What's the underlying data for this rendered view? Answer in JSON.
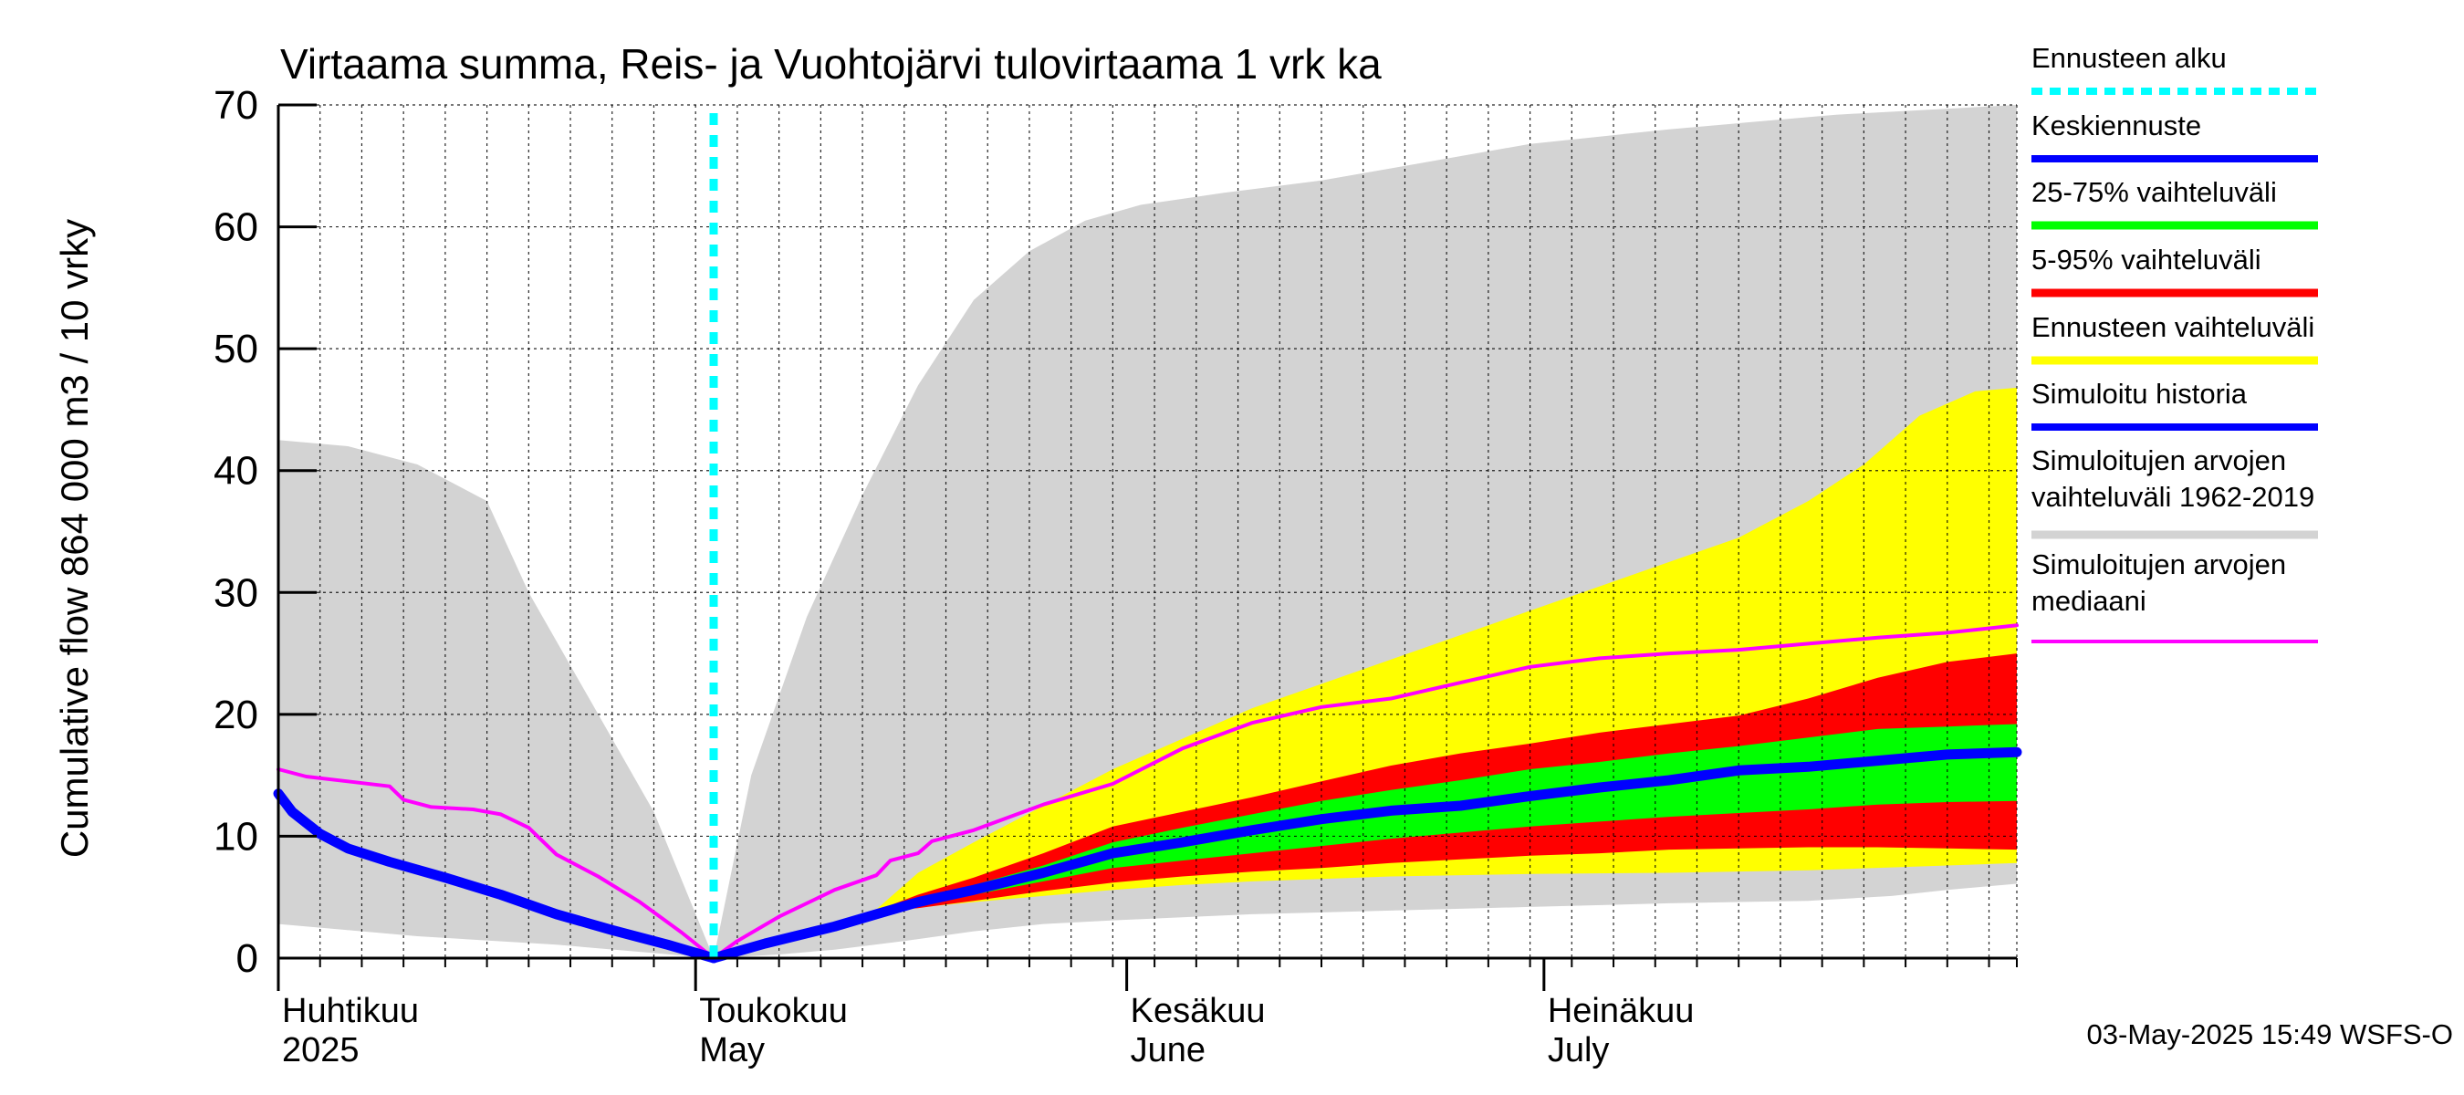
{
  "chart_data": {
    "type": "area",
    "title": "Virtaama summa, Reis- ja Vuohtojärvi tulovirtaama 1 vrk ka",
    "ylabel": "Cumulative flow    864 000 m3 / 10 vrky",
    "ylim": [
      0,
      70
    ],
    "yticks": [
      0,
      10,
      20,
      30,
      40,
      50,
      60,
      70
    ],
    "xlim": [
      0,
      125
    ],
    "grid": true,
    "day_ticks": [
      0,
      3,
      6,
      9,
      12,
      15,
      18,
      21,
      24,
      27,
      30,
      33,
      36,
      39,
      42,
      45,
      48,
      51,
      54,
      57,
      60,
      63,
      66,
      69,
      72,
      75,
      78,
      81,
      84,
      87,
      90,
      93,
      96,
      99,
      102,
      105,
      108,
      111,
      114,
      117,
      120,
      123,
      125
    ],
    "month_ticks": [
      {
        "day": 0,
        "line1": "Huhtikuu",
        "line2": "2025"
      },
      {
        "day": 30,
        "line1": "Toukokuu",
        "line2": "May"
      },
      {
        "day": 61,
        "line1": "Kesäkuu",
        "line2": "June"
      },
      {
        "day": 91,
        "line1": "Heinäkuu",
        "line2": "July"
      }
    ],
    "forecast_start_day": 31.3,
    "bands": {
      "sim_range_1962_2019": {
        "upper": [
          [
            0,
            42.5
          ],
          [
            5,
            42
          ],
          [
            10,
            40.5
          ],
          [
            15,
            37.5
          ],
          [
            18,
            30
          ],
          [
            22,
            22
          ],
          [
            27,
            12
          ],
          [
            31.3,
            0
          ],
          [
            34,
            15
          ],
          [
            38,
            28
          ],
          [
            42,
            38
          ],
          [
            46,
            47
          ],
          [
            50,
            54
          ],
          [
            54,
            58
          ],
          [
            58,
            60.5
          ],
          [
            62,
            61.8
          ],
          [
            68,
            62.8
          ],
          [
            75,
            63.8
          ],
          [
            80,
            64.8
          ],
          [
            90,
            66.8
          ],
          [
            100,
            68
          ],
          [
            112,
            69.2
          ],
          [
            125,
            70
          ]
        ],
        "lower": [
          [
            0,
            2.8
          ],
          [
            10,
            1.8
          ],
          [
            20,
            1.1
          ],
          [
            31.3,
            0
          ],
          [
            36,
            0.3
          ],
          [
            40,
            0.7
          ],
          [
            45,
            1.4
          ],
          [
            50,
            2.2
          ],
          [
            55,
            2.8
          ],
          [
            60,
            3.1
          ],
          [
            70,
            3.6
          ],
          [
            80,
            3.9
          ],
          [
            90,
            4.2
          ],
          [
            100,
            4.5
          ],
          [
            110,
            4.7
          ],
          [
            116,
            5.1
          ],
          [
            120,
            5.6
          ],
          [
            125,
            6.1
          ]
        ]
      },
      "forecast_range": {
        "upper": [
          [
            43,
            4
          ],
          [
            46,
            7
          ],
          [
            50,
            9.5
          ],
          [
            55,
            12.5
          ],
          [
            60,
            15.5
          ],
          [
            65,
            18
          ],
          [
            70,
            20.5
          ],
          [
            75,
            22.5
          ],
          [
            80,
            24.5
          ],
          [
            85,
            26.5
          ],
          [
            90,
            28.5
          ],
          [
            95,
            30.5
          ],
          [
            100,
            32.5
          ],
          [
            105,
            34.5
          ],
          [
            110,
            37.5
          ],
          [
            114,
            40.5
          ],
          [
            118,
            44.5
          ],
          [
            122,
            46.5
          ],
          [
            125,
            46.8
          ]
        ],
        "lower": [
          [
            43,
            3.8
          ],
          [
            50,
            4.6
          ],
          [
            55,
            5.1
          ],
          [
            60,
            5.6
          ],
          [
            65,
            6
          ],
          [
            70,
            6.3
          ],
          [
            75,
            6.5
          ],
          [
            80,
            6.7
          ],
          [
            90,
            6.9
          ],
          [
            100,
            7
          ],
          [
            110,
            7.2
          ],
          [
            120,
            7.6
          ],
          [
            125,
            7.8
          ]
        ]
      },
      "p5_95": {
        "upper": [
          [
            43,
            3.9
          ],
          [
            46,
            5.2
          ],
          [
            50,
            6.6
          ],
          [
            55,
            8.6
          ],
          [
            60,
            10.8
          ],
          [
            65,
            12
          ],
          [
            70,
            13.2
          ],
          [
            75,
            14.5
          ],
          [
            80,
            15.8
          ],
          [
            85,
            16.8
          ],
          [
            90,
            17.6
          ],
          [
            95,
            18.5
          ],
          [
            100,
            19.2
          ],
          [
            105,
            19.9
          ],
          [
            110,
            21.3
          ],
          [
            115,
            23
          ],
          [
            120,
            24.3
          ],
          [
            125,
            25
          ]
        ],
        "lower": [
          [
            43,
            3.8
          ],
          [
            46,
            4.1
          ],
          [
            50,
            4.7
          ],
          [
            55,
            5.5
          ],
          [
            60,
            6.2
          ],
          [
            65,
            6.7
          ],
          [
            70,
            7.1
          ],
          [
            75,
            7.4
          ],
          [
            80,
            7.8
          ],
          [
            85,
            8.1
          ],
          [
            90,
            8.4
          ],
          [
            95,
            8.6
          ],
          [
            100,
            8.9
          ],
          [
            105,
            9
          ],
          [
            110,
            9.1
          ],
          [
            115,
            9.1
          ],
          [
            120,
            9
          ],
          [
            125,
            8.9
          ]
        ]
      },
      "p25_75": {
        "upper": [
          [
            43,
            3.9
          ],
          [
            46,
            4.9
          ],
          [
            50,
            6
          ],
          [
            55,
            7.6
          ],
          [
            60,
            9.5
          ],
          [
            65,
            10.7
          ],
          [
            70,
            11.8
          ],
          [
            75,
            12.9
          ],
          [
            80,
            13.8
          ],
          [
            85,
            14.6
          ],
          [
            90,
            15.5
          ],
          [
            95,
            16.1
          ],
          [
            100,
            16.8
          ],
          [
            105,
            17.4
          ],
          [
            110,
            18.1
          ],
          [
            115,
            18.8
          ],
          [
            120,
            19
          ],
          [
            125,
            19.2
          ]
        ],
        "lower": [
          [
            43,
            3.8
          ],
          [
            46,
            4.3
          ],
          [
            50,
            5.2
          ],
          [
            55,
            6.3
          ],
          [
            60,
            7.4
          ],
          [
            65,
            8
          ],
          [
            70,
            8.6
          ],
          [
            75,
            9.2
          ],
          [
            80,
            9.8
          ],
          [
            85,
            10.3
          ],
          [
            90,
            10.8
          ],
          [
            95,
            11.2
          ],
          [
            100,
            11.6
          ],
          [
            105,
            11.9
          ],
          [
            110,
            12.2
          ],
          [
            115,
            12.6
          ],
          [
            120,
            12.8
          ],
          [
            125,
            12.9
          ]
        ]
      }
    },
    "series": [
      {
        "name": "Keskiennuste",
        "values": [
          [
            31.3,
            0
          ],
          [
            35,
            1.2
          ],
          [
            40,
            2.6
          ],
          [
            43,
            3.6
          ],
          [
            46,
            4.6
          ],
          [
            50,
            5.6
          ],
          [
            55,
            7
          ],
          [
            60,
            8.6
          ],
          [
            65,
            9.5
          ],
          [
            70,
            10.5
          ],
          [
            75,
            11.4
          ],
          [
            80,
            12.1
          ],
          [
            85,
            12.5
          ],
          [
            90,
            13.3
          ],
          [
            95,
            14
          ],
          [
            100,
            14.6
          ],
          [
            105,
            15.4
          ],
          [
            110,
            15.7
          ],
          [
            115,
            16.2
          ],
          [
            120,
            16.7
          ],
          [
            125,
            16.9
          ]
        ]
      },
      {
        "name": "Simuloitu historia",
        "values": [
          [
            0,
            13.5
          ],
          [
            1,
            12
          ],
          [
            3,
            10.2
          ],
          [
            5,
            9
          ],
          [
            8,
            7.9
          ],
          [
            12,
            6.6
          ],
          [
            16,
            5.2
          ],
          [
            20,
            3.6
          ],
          [
            24,
            2.3
          ],
          [
            28,
            1.1
          ],
          [
            31.3,
            0
          ]
        ]
      },
      {
        "name": "Simuloitujen arvojen mediaani",
        "values": [
          [
            0,
            15.5
          ],
          [
            2,
            14.9
          ],
          [
            5,
            14.5
          ],
          [
            8,
            14.1
          ],
          [
            9,
            13
          ],
          [
            11,
            12.4
          ],
          [
            14,
            12.2
          ],
          [
            16,
            11.8
          ],
          [
            18,
            10.7
          ],
          [
            20,
            8.5
          ],
          [
            23,
            6.7
          ],
          [
            26,
            4.6
          ],
          [
            29,
            2.1
          ],
          [
            31.3,
            0
          ],
          [
            33,
            1.4
          ],
          [
            36,
            3.4
          ],
          [
            40,
            5.6
          ],
          [
            43,
            6.8
          ],
          [
            44,
            8
          ],
          [
            46,
            8.6
          ],
          [
            47,
            9.6
          ],
          [
            50,
            10.5
          ],
          [
            55,
            12.6
          ],
          [
            60,
            14.3
          ],
          [
            65,
            17.2
          ],
          [
            70,
            19.3
          ],
          [
            75,
            20.6
          ],
          [
            80,
            21.3
          ],
          [
            85,
            22.6
          ],
          [
            90,
            23.9
          ],
          [
            95,
            24.6
          ],
          [
            100,
            25
          ],
          [
            105,
            25.3
          ],
          [
            110,
            25.8
          ],
          [
            115,
            26.3
          ],
          [
            120,
            26.7
          ],
          [
            125,
            27.3
          ]
        ]
      }
    ],
    "legend": [
      {
        "label": "Ennusteen alku",
        "color": "#00ffff",
        "style": "dotted"
      },
      {
        "label": "Keskiennuste",
        "color": "#0000ff",
        "style": "solid"
      },
      {
        "label": "25-75% vaihteluväli",
        "color": "#00ff00",
        "style": "solid"
      },
      {
        "label": "5-95% vaihteluväli",
        "color": "#ff0000",
        "style": "solid"
      },
      {
        "label": "Ennusteen vaihteluväli",
        "color": "#ffff00",
        "style": "solid"
      },
      {
        "label": "Simuloitu historia",
        "color": "#0000ff",
        "style": "solid"
      },
      {
        "label": "Simuloitujen arvojen\nvaihteluväli 1962-2019",
        "color": "#d3d3d3",
        "style": "solid"
      },
      {
        "label": "Simuloitujen arvojen\nmediaani",
        "color": "#ff00ff",
        "style": "solid"
      }
    ],
    "colors": {
      "sim_range": "#d3d3d3",
      "forecast_range": "#ffff00",
      "p5_95": "#ff0000",
      "p25_75": "#00ff00",
      "forecast_median": "#0000ff",
      "sim_history": "#0000ff",
      "median": "#ff00ff",
      "forecast_start": "#00ffff"
    },
    "timestamp": "03-May-2025 15:49 WSFS-O"
  }
}
